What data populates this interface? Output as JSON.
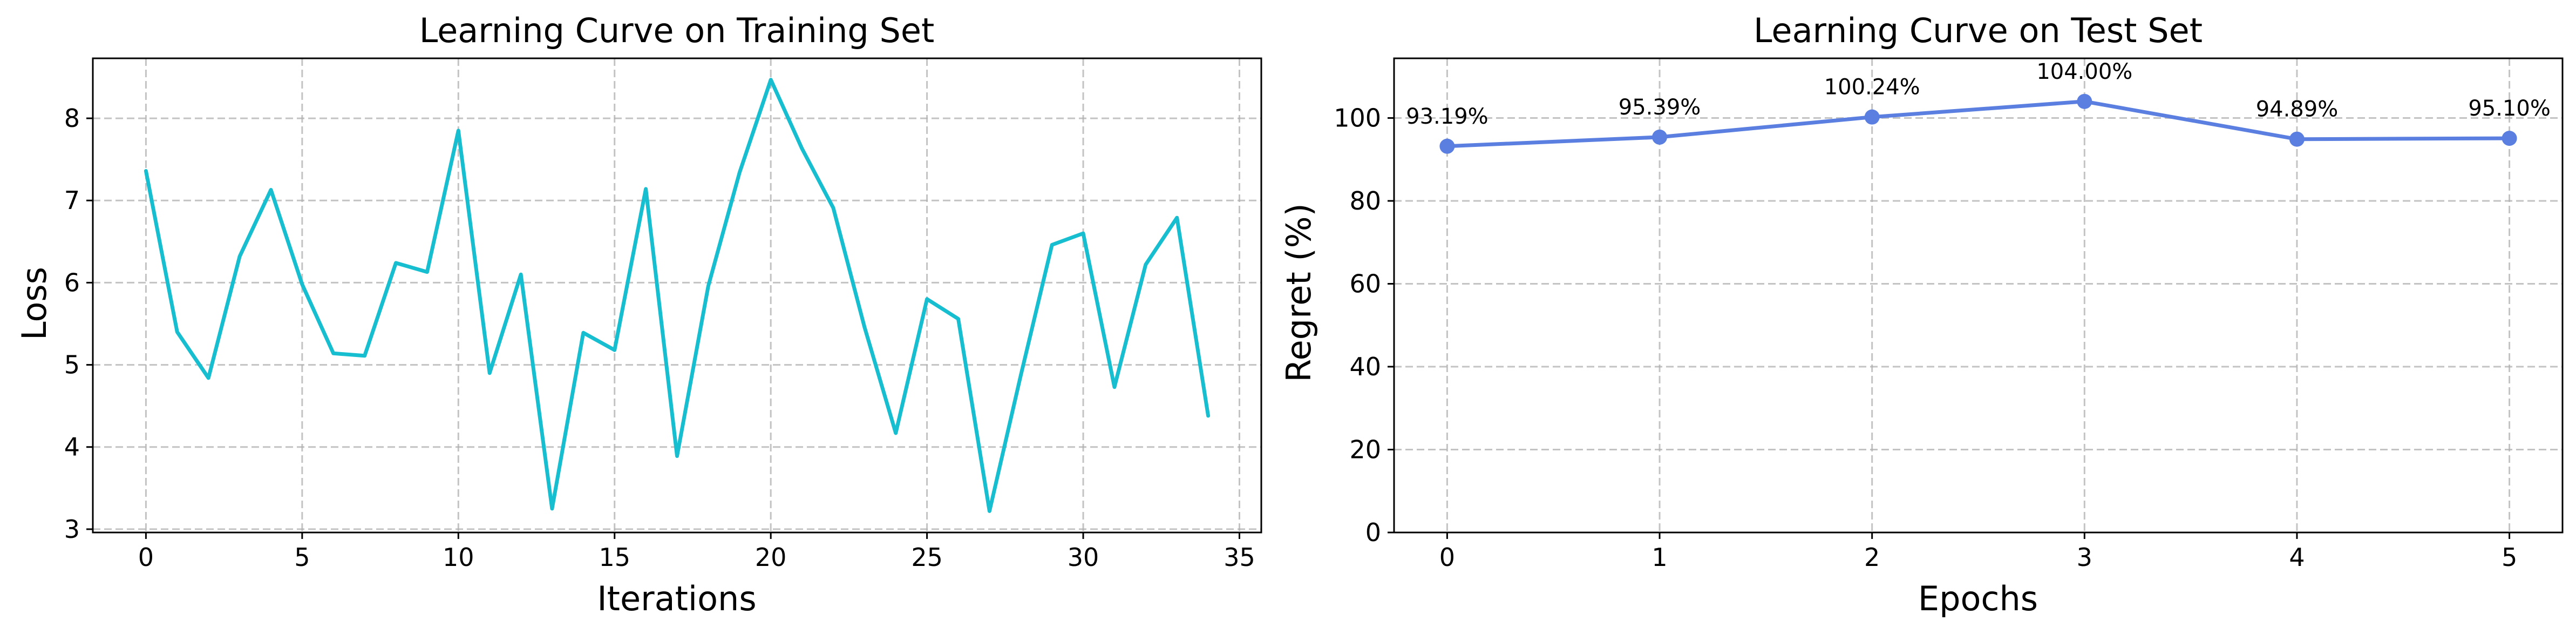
{
  "chart_data": [
    {
      "type": "line",
      "title": "Learning Curve on Training Set",
      "xlabel": "Iterations",
      "ylabel": "Loss",
      "x": [
        0,
        1,
        2,
        3,
        4,
        5,
        6,
        7,
        8,
        9,
        10,
        11,
        12,
        13,
        14,
        15,
        16,
        17,
        18,
        19,
        20,
        21,
        22,
        23,
        24,
        25,
        26,
        27,
        28,
        29,
        30,
        31,
        32,
        33,
        34
      ],
      "series": [
        {
          "values": [
            7.36,
            5.4,
            4.84,
            6.32,
            7.13,
            5.98,
            5.14,
            5.11,
            6.24,
            6.13,
            7.85,
            4.9,
            6.1,
            3.25,
            5.39,
            5.18,
            7.14,
            3.89,
            5.96,
            7.34,
            8.47,
            7.63,
            6.91,
            5.46,
            4.17,
            5.8,
            5.56,
            3.22,
            4.87,
            6.46,
            6.6,
            4.73,
            6.22,
            6.79,
            4.38
          ],
          "color": "#17becf"
        }
      ],
      "xlim": [
        -1.7,
        35.7
      ],
      "ylim": [
        2.96,
        8.73
      ],
      "xticks": [
        0,
        5,
        10,
        15,
        20,
        25,
        30,
        35
      ],
      "yticks": [
        3,
        4,
        5,
        6,
        7,
        8
      ],
      "grid": true
    },
    {
      "type": "line",
      "title": "Learning Curve on Test Set",
      "xlabel": "Epochs",
      "ylabel": "Regret (%)",
      "x": [
        0,
        1,
        2,
        3,
        4,
        5
      ],
      "series": [
        {
          "values": [
            93.19,
            95.39,
            100.24,
            104.0,
            94.89,
            95.1
          ],
          "labels": [
            "93.19%",
            "95.39%",
            "100.24%",
            "104.00%",
            "94.89%",
            "95.10%"
          ],
          "color": "#5b7fe0",
          "markers": true
        }
      ],
      "xlim": [
        -0.25,
        5.25
      ],
      "ylim": [
        0,
        114.4
      ],
      "xticks": [
        0,
        1,
        2,
        3,
        4,
        5
      ],
      "yticks": [
        0,
        20,
        40,
        60,
        80,
        100
      ],
      "grid": true
    }
  ]
}
